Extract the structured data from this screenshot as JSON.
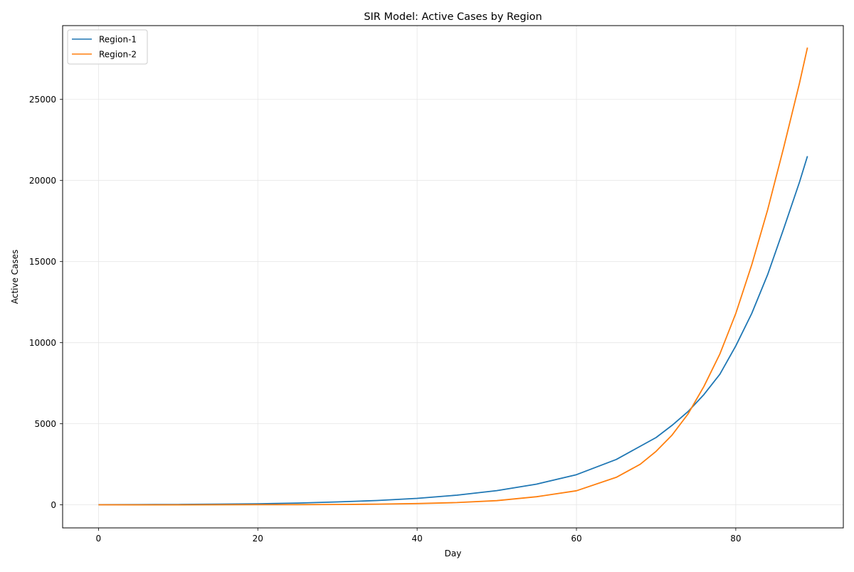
{
  "chart_data": {
    "type": "line",
    "title": "SIR Model: Active Cases by Region",
    "xlabel": "Day",
    "ylabel": "Active Cases",
    "xlim": [
      -4.5,
      93.5
    ],
    "ylim": [
      -1420,
      29550
    ],
    "xticks": [
      0,
      20,
      40,
      60,
      80
    ],
    "yticks": [
      0,
      5000,
      10000,
      15000,
      20000,
      25000
    ],
    "grid": true,
    "legend_position": "top-left",
    "series": [
      {
        "name": "Region-1",
        "color": "#1f77b4",
        "x": [
          0,
          5,
          7,
          10,
          15,
          20,
          25,
          30,
          35,
          40,
          45,
          50,
          55,
          60,
          65,
          70,
          72,
          74,
          76,
          78,
          80,
          82,
          84,
          86,
          88,
          89
        ],
        "y": [
          10,
          15,
          18,
          24,
          40,
          66,
          110,
          180,
          270,
          400,
          600,
          880,
          1280,
          1860,
          2800,
          4150,
          4900,
          5750,
          6800,
          8050,
          9800,
          11800,
          14200,
          17000,
          19900,
          21500
        ]
      },
      {
        "name": "Region-2",
        "color": "#ff7f0e",
        "x": [
          0,
          5,
          7,
          10,
          15,
          20,
          25,
          30,
          35,
          40,
          45,
          50,
          55,
          60,
          65,
          68,
          70,
          72,
          74,
          76,
          78,
          80,
          82,
          84,
          86,
          88,
          89
        ],
        "y": [
          5,
          3,
          2,
          3,
          5,
          8,
          14,
          25,
          45,
          80,
          140,
          260,
          500,
          870,
          1700,
          2500,
          3300,
          4300,
          5600,
          7300,
          9300,
          11800,
          14800,
          18200,
          22000,
          26000,
          28200
        ]
      }
    ]
  }
}
